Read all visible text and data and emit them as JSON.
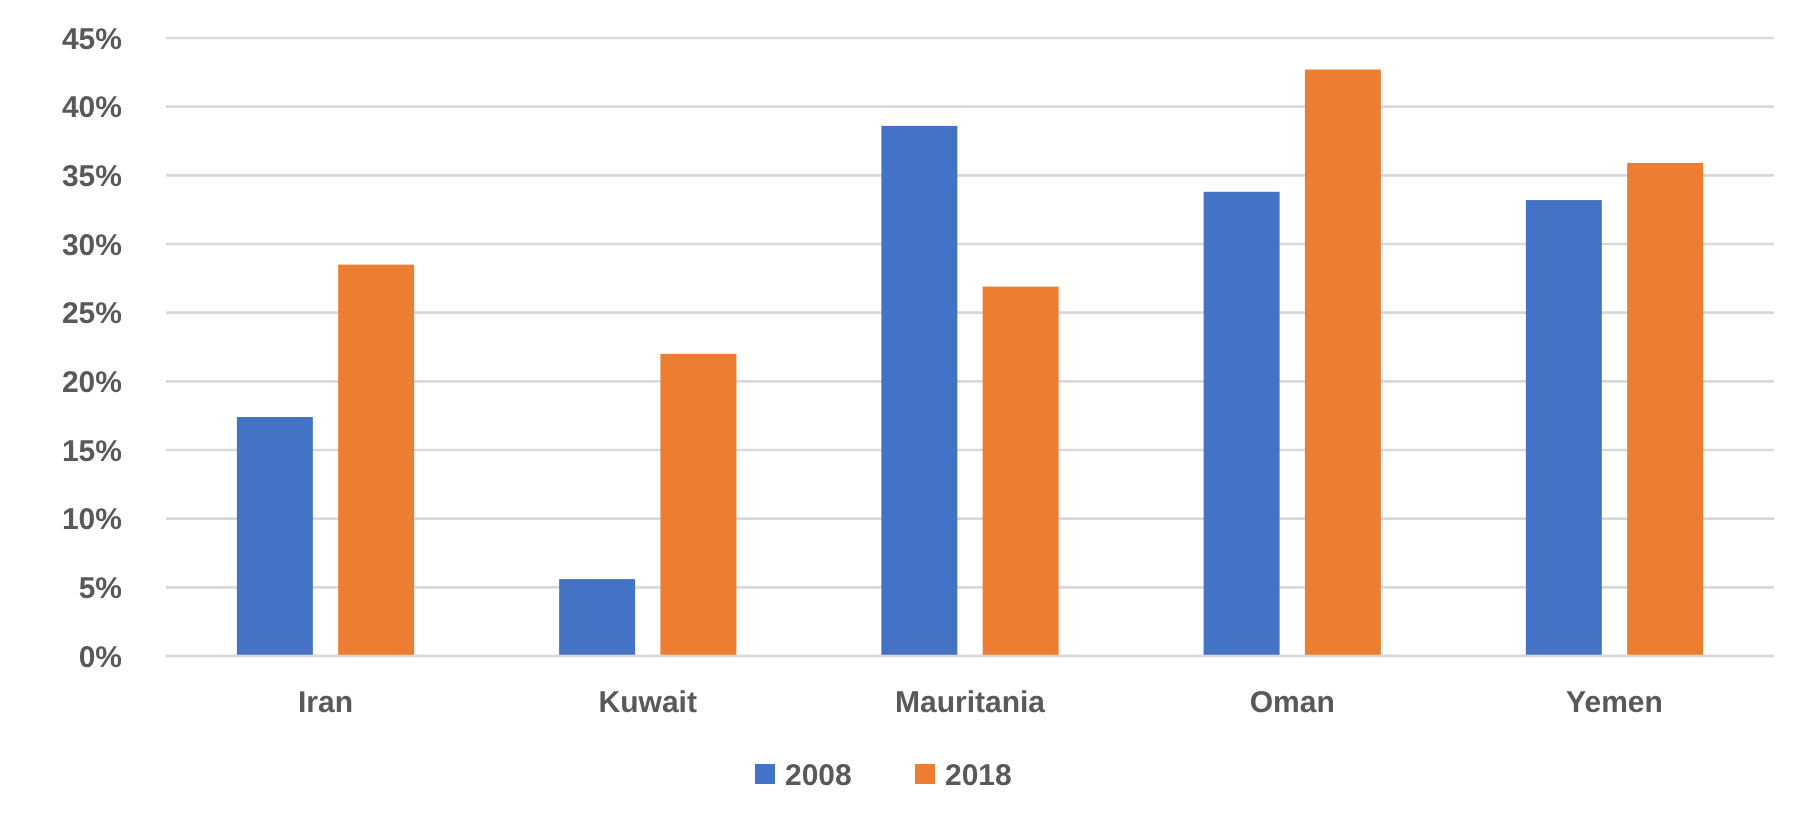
{
  "chart_data": {
    "type": "bar",
    "categories": [
      "Iran",
      "Kuwait",
      "Mauritania",
      "Oman",
      "Yemen"
    ],
    "series": [
      {
        "name": "2008",
        "color": "#4472c4",
        "values": [
          17.4,
          5.6,
          38.6,
          33.8,
          33.2
        ]
      },
      {
        "name": "2018",
        "color": "#ed7d31",
        "values": [
          28.5,
          22.0,
          26.9,
          42.7,
          35.9
        ]
      }
    ],
    "ylim": [
      0,
      45
    ],
    "yticks": [
      {
        "value": 0,
        "label": "0%"
      },
      {
        "value": 5,
        "label": "5%"
      },
      {
        "value": 10,
        "label": "10%"
      },
      {
        "value": 15,
        "label": "15%"
      },
      {
        "value": 20,
        "label": "20%"
      },
      {
        "value": 25,
        "label": "25%"
      },
      {
        "value": 30,
        "label": "30%"
      },
      {
        "value": 35,
        "label": "35%"
      },
      {
        "value": 40,
        "label": "40%"
      },
      {
        "value": 45,
        "label": "45%"
      }
    ],
    "grid": "y",
    "legend": "bottom"
  }
}
